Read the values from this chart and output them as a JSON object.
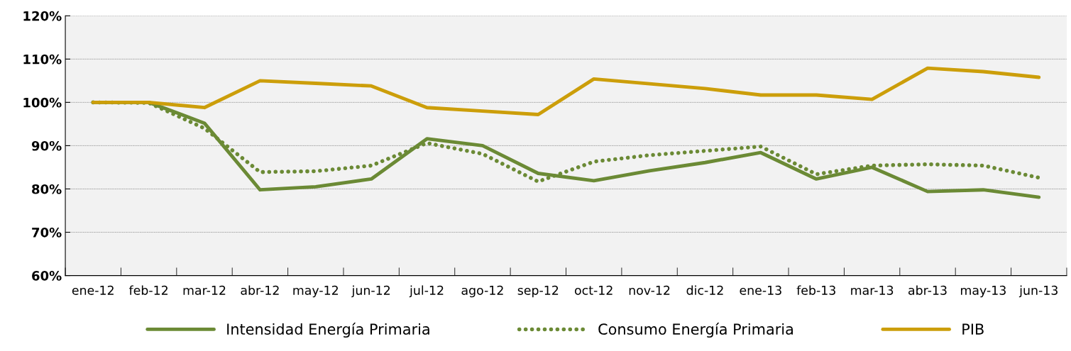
{
  "chart_data": {
    "type": "line",
    "categories": [
      "ene-12",
      "feb-12",
      "mar-12",
      "abr-12",
      "may-12",
      "jun-12",
      "jul-12",
      "ago-12",
      "sep-12",
      "oct-12",
      "nov-12",
      "dic-12",
      "ene-13",
      "feb-13",
      "mar-13",
      "abr-13",
      "may-13",
      "jun-13"
    ],
    "series": [
      {
        "name": "Intensidad Energía Primaria",
        "color": "#6b8a35",
        "line_style": "solid",
        "values": [
          100,
          100,
          95.2,
          79.8,
          80.5,
          82.3,
          91.6,
          90,
          83.6,
          81.9,
          84.2,
          86.1,
          88.4,
          82.3,
          85,
          79.4,
          79.8,
          78.1
        ]
      },
      {
        "name": "Consumo Energía Primaria",
        "color": "#6b8a35",
        "line_style": "dotted",
        "values": [
          100,
          99.9,
          94,
          83.9,
          84.1,
          85.4,
          90.6,
          88.1,
          81.7,
          86.3,
          87.8,
          88.8,
          89.8,
          83.4,
          85.4,
          85.7,
          85.4,
          82.6
        ]
      },
      {
        "name": "PIB",
        "color": "#cc9e0a",
        "line_style": "solid",
        "values": [
          100,
          100,
          98.8,
          105,
          104.4,
          103.8,
          98.8,
          98,
          97.2,
          105.4,
          104.3,
          103.2,
          101.7,
          101.7,
          100.7,
          107.9,
          107.1,
          105.8
        ]
      }
    ],
    "ylim": [
      60,
      120
    ],
    "yticks": [
      {
        "value": 60,
        "label": "60%"
      },
      {
        "value": 70,
        "label": "70%"
      },
      {
        "value": 80,
        "label": "80%"
      },
      {
        "value": 90,
        "label": "90%"
      },
      {
        "value": 100,
        "label": "100%"
      },
      {
        "value": 110,
        "label": "110%"
      },
      {
        "value": 120,
        "label": "120%"
      }
    ],
    "grid": "y",
    "legend": "bottom",
    "marker": "none"
  }
}
